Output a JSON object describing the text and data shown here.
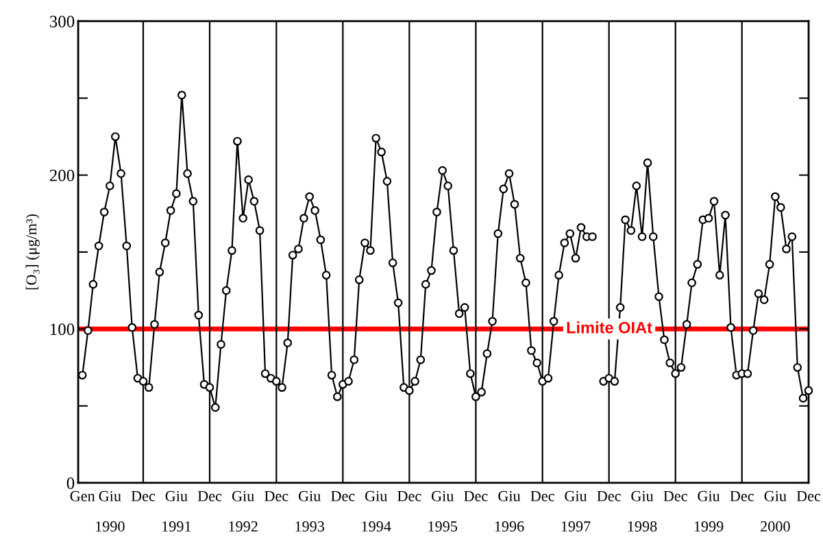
{
  "chart_data": {
    "type": "line",
    "ylabel": "[O₃] (μg/m³)",
    "x": [
      "1990-01",
      "1990-02",
      "1990-03",
      "1990-04",
      "1990-05",
      "1990-06",
      "1990-07",
      "1990-08",
      "1990-09",
      "1990-10",
      "1990-11",
      "1990-12",
      "1991-01",
      "1991-02",
      "1991-03",
      "1991-04",
      "1991-05",
      "1991-06",
      "1991-07",
      "1991-08",
      "1991-09",
      "1991-10",
      "1991-11",
      "1991-12",
      "1992-01",
      "1992-02",
      "1992-03",
      "1992-04",
      "1992-05",
      "1992-06",
      "1992-07",
      "1992-08",
      "1992-09",
      "1992-10",
      "1992-11",
      "1992-12",
      "1993-01",
      "1993-02",
      "1993-03",
      "1993-04",
      "1993-05",
      "1993-06",
      "1993-07",
      "1993-08",
      "1993-09",
      "1993-10",
      "1993-11",
      "1993-12",
      "1994-01",
      "1994-02",
      "1994-03",
      "1994-04",
      "1994-05",
      "1994-06",
      "1994-07",
      "1994-08",
      "1994-09",
      "1994-10",
      "1994-11",
      "1994-12",
      "1995-01",
      "1995-02",
      "1995-03",
      "1995-04",
      "1995-05",
      "1995-06",
      "1995-07",
      "1995-08",
      "1995-09",
      "1995-10",
      "1995-11",
      "1995-12",
      "1996-01",
      "1996-02",
      "1996-03",
      "1996-04",
      "1996-05",
      "1996-06",
      "1996-07",
      "1996-08",
      "1996-09",
      "1996-10",
      "1996-11",
      "1996-12",
      "1997-01",
      "1997-02",
      "1997-03",
      "1997-04",
      "1997-05",
      "1997-06",
      "1997-07",
      "1997-08",
      "1997-09",
      "1997-10",
      "1997-11",
      "1997-12",
      "1998-01",
      "1998-02",
      "1998-03",
      "1998-04",
      "1998-05",
      "1998-06",
      "1998-07",
      "1998-08",
      "1998-09",
      "1998-10",
      "1998-11",
      "1998-12",
      "1999-01",
      "1999-02",
      "1999-03",
      "1999-04",
      "1999-05",
      "1999-06",
      "1999-07",
      "1999-08",
      "1999-09",
      "1999-10",
      "1999-11",
      "1999-12",
      "2000-01",
      "2000-02",
      "2000-03",
      "2000-04",
      "2000-05",
      "2000-06",
      "2000-07",
      "2000-08",
      "2000-09",
      "2000-10",
      "2000-11",
      "2000-12"
    ],
    "series": [
      {
        "color": "#000000",
        "values": [
          70,
          99,
          129,
          154,
          176,
          193,
          225,
          201,
          154,
          101,
          68,
          66,
          62,
          103,
          137,
          156,
          177,
          188,
          252,
          201,
          183,
          109,
          64,
          62,
          49,
          90,
          125,
          151,
          222,
          172,
          197,
          183,
          164,
          71,
          68,
          66,
          62,
          91,
          148,
          152,
          172,
          186,
          177,
          158,
          135,
          70,
          56,
          64,
          66,
          80,
          132,
          156,
          151,
          224,
          215,
          196,
          143,
          117,
          62,
          60,
          66,
          80,
          129,
          138,
          176,
          203,
          193,
          151,
          110,
          114,
          71,
          56,
          59,
          84,
          105,
          162,
          191,
          201,
          181,
          146,
          130,
          86,
          78,
          66,
          68,
          105,
          135,
          156,
          162,
          146,
          166,
          160,
          160,
          null,
          66,
          68,
          66,
          114,
          171,
          164,
          193,
          160,
          208,
          160,
          121,
          93,
          78,
          71,
          75,
          103,
          130,
          142,
          171,
          172,
          183,
          135,
          174,
          101,
          70,
          71,
          71,
          99,
          123,
          119,
          142,
          186,
          179,
          152,
          160,
          75,
          55,
          60
        ]
      }
    ],
    "marker": "circle",
    "line_style": "solid",
    "xlim": [
      "1989-12-09",
      "2000-12-01"
    ],
    "xticks": [
      {
        "value": "1990-01",
        "label": "Gen"
      },
      {
        "value": "1990-06",
        "label": "Giu"
      },
      {
        "value": "1990-12",
        "label": "Dec"
      },
      {
        "value": "1991-06",
        "label": "Giu"
      },
      {
        "value": "1991-12",
        "label": "Dec"
      },
      {
        "value": "1992-06",
        "label": "Giu"
      },
      {
        "value": "1992-12",
        "label": "Dec"
      },
      {
        "value": "1993-06",
        "label": "Giu"
      },
      {
        "value": "1993-12",
        "label": "Dec"
      },
      {
        "value": "1994-06",
        "label": "Giu"
      },
      {
        "value": "1994-12",
        "label": "Dec"
      },
      {
        "value": "1995-06",
        "label": "Giu"
      },
      {
        "value": "1995-12",
        "label": "Dec"
      },
      {
        "value": "1996-06",
        "label": "Giu"
      },
      {
        "value": "1996-12",
        "label": "Dec"
      },
      {
        "value": "1997-06",
        "label": "Giu"
      },
      {
        "value": "1997-12",
        "label": "Dec"
      },
      {
        "value": "1998-06",
        "label": "Giu"
      },
      {
        "value": "1998-12",
        "label": "Dec"
      },
      {
        "value": "1999-06",
        "label": "Giu"
      },
      {
        "value": "1999-12",
        "label": "Dec"
      },
      {
        "value": "2000-06",
        "label": "Giu"
      },
      {
        "value": "2000-12",
        "label": "Dec"
      }
    ],
    "x2lim": [
      "1989-12-09",
      "2000-12-01"
    ],
    "x2ticks": [
      {
        "value": "1990-06",
        "label": "1990"
      },
      {
        "value": "1991-06",
        "label": "1991"
      },
      {
        "value": "1992-06",
        "label": "1992"
      },
      {
        "value": "1993-06",
        "label": "1993"
      },
      {
        "value": "1994-06",
        "label": "1994"
      },
      {
        "value": "1995-06",
        "label": "1995"
      },
      {
        "value": "1996-06",
        "label": "1996"
      },
      {
        "value": "1997-06",
        "label": "1997"
      },
      {
        "value": "1998-06",
        "label": "1998"
      },
      {
        "value": "1999-06",
        "label": "1999"
      },
      {
        "value": "2000-06",
        "label": "2000"
      }
    ],
    "ylim": [
      0,
      300
    ],
    "yticks": [
      0,
      {
        "value": 50,
        "label": null
      },
      100,
      {
        "value": 150,
        "label": null
      },
      200,
      {
        "value": 250,
        "label": null
      },
      300
    ],
    "ref_lines": [
      {
        "axis": "y",
        "value": 100,
        "label": "Limite OIAt",
        "color": "#ff0000"
      },
      {
        "axis": "x",
        "value": "1990-12",
        "color": "#000000"
      },
      {
        "axis": "x",
        "value": "1991-12",
        "color": "#000000"
      },
      {
        "axis": "x",
        "value": "1992-12",
        "color": "#000000"
      },
      {
        "axis": "x",
        "value": "1993-12",
        "color": "#000000"
      },
      {
        "axis": "x",
        "value": "1994-12",
        "color": "#000000"
      },
      {
        "axis": "x",
        "value": "1995-12",
        "color": "#000000"
      },
      {
        "axis": "x",
        "value": "1996-12",
        "color": "#000000"
      },
      {
        "axis": "x",
        "value": "1997-12",
        "color": "#000000"
      },
      {
        "axis": "x",
        "value": "1998-12",
        "color": "#000000"
      },
      {
        "axis": "x",
        "value": "1999-12",
        "color": "#000000"
      }
    ],
    "grid": false,
    "legend": false
  }
}
